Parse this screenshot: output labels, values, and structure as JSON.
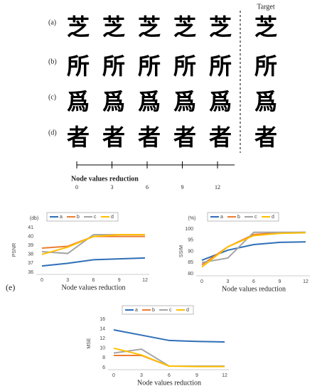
{
  "panel": {
    "target_label": "Target",
    "sub_label": "(e)",
    "rows": [
      {
        "label": "(a)",
        "char": "芝"
      },
      {
        "label": "(b)",
        "char": "所"
      },
      {
        "label": "(c)",
        "char": "爲"
      },
      {
        "label": "(d)",
        "char": "者"
      }
    ],
    "axis": {
      "label": "Node values reduction",
      "xlim": [
        0,
        12
      ],
      "xticks": [
        0,
        3,
        6,
        9,
        12
      ]
    }
  },
  "chart_data": [
    {
      "type": "line",
      "ylabel": "PSNR",
      "unit_label": "(db)",
      "xlabel": "Node values reduction",
      "x": [
        0,
        3,
        6,
        9,
        12
      ],
      "xlim": [
        0,
        12
      ],
      "ylim": [
        36,
        41
      ],
      "yticks": [
        36,
        37,
        38,
        39,
        40,
        41
      ],
      "grid": false,
      "legend": "top",
      "series": [
        {
          "name": "a",
          "color": "#2e6fb7",
          "values": [
            36.7,
            37.0,
            37.4,
            37.5,
            37.6
          ]
        },
        {
          "name": "b",
          "color": "#ed7d31",
          "values": [
            38.7,
            38.9,
            40.0,
            40.0,
            40.0
          ]
        },
        {
          "name": "c",
          "color": "#a5a5a5",
          "values": [
            38.3,
            38.1,
            40.2,
            40.2,
            40.2
          ]
        },
        {
          "name": "d",
          "color": "#ffc000",
          "values": [
            38.0,
            38.8,
            40.0,
            40.2,
            40.2
          ]
        }
      ]
    },
    {
      "type": "line",
      "ylabel": "SSIM",
      "unit_label": "(%)",
      "xlabel": "Node values reduction",
      "x": [
        0,
        3,
        6,
        9,
        12
      ],
      "xlim": [
        0,
        12
      ],
      "ylim": [
        80,
        100
      ],
      "yticks": [
        80,
        85,
        90,
        95,
        100
      ],
      "grid": false,
      "legend": "top",
      "series": [
        {
          "name": "a",
          "color": "#2e6fb7",
          "values": [
            86,
            90.5,
            93,
            94,
            94.2
          ]
        },
        {
          "name": "b",
          "color": "#ed7d31",
          "values": [
            84,
            92,
            97.5,
            98.3,
            98.5
          ]
        },
        {
          "name": "c",
          "color": "#a5a5a5",
          "values": [
            85,
            87,
            98.5,
            98.5,
            98.5
          ]
        },
        {
          "name": "d",
          "color": "#ffc000",
          "values": [
            83,
            92,
            97,
            98,
            98.3
          ]
        }
      ]
    },
    {
      "type": "line",
      "ylabel": "MSE",
      "xlabel": "Node values reduction",
      "x": [
        0,
        3,
        6,
        9,
        12
      ],
      "xlim": [
        0,
        12
      ],
      "ylim": [
        6,
        16
      ],
      "yticks": [
        6,
        8,
        10,
        12,
        14,
        16
      ],
      "grid": false,
      "legend": "top",
      "series": [
        {
          "name": "a",
          "color": "#2e6fb7",
          "values": [
            13.8,
            12.7,
            11.6,
            11.4,
            11.3
          ]
        },
        {
          "name": "b",
          "color": "#ed7d31",
          "values": [
            8.5,
            8.5,
            6.3,
            6.3,
            6.3
          ]
        },
        {
          "name": "c",
          "color": "#a5a5a5",
          "values": [
            9.0,
            9.8,
            6.3,
            6.3,
            6.3
          ]
        },
        {
          "name": "d",
          "color": "#ffc000",
          "values": [
            10.0,
            8.6,
            6.3,
            6.2,
            6.2
          ]
        }
      ]
    }
  ]
}
